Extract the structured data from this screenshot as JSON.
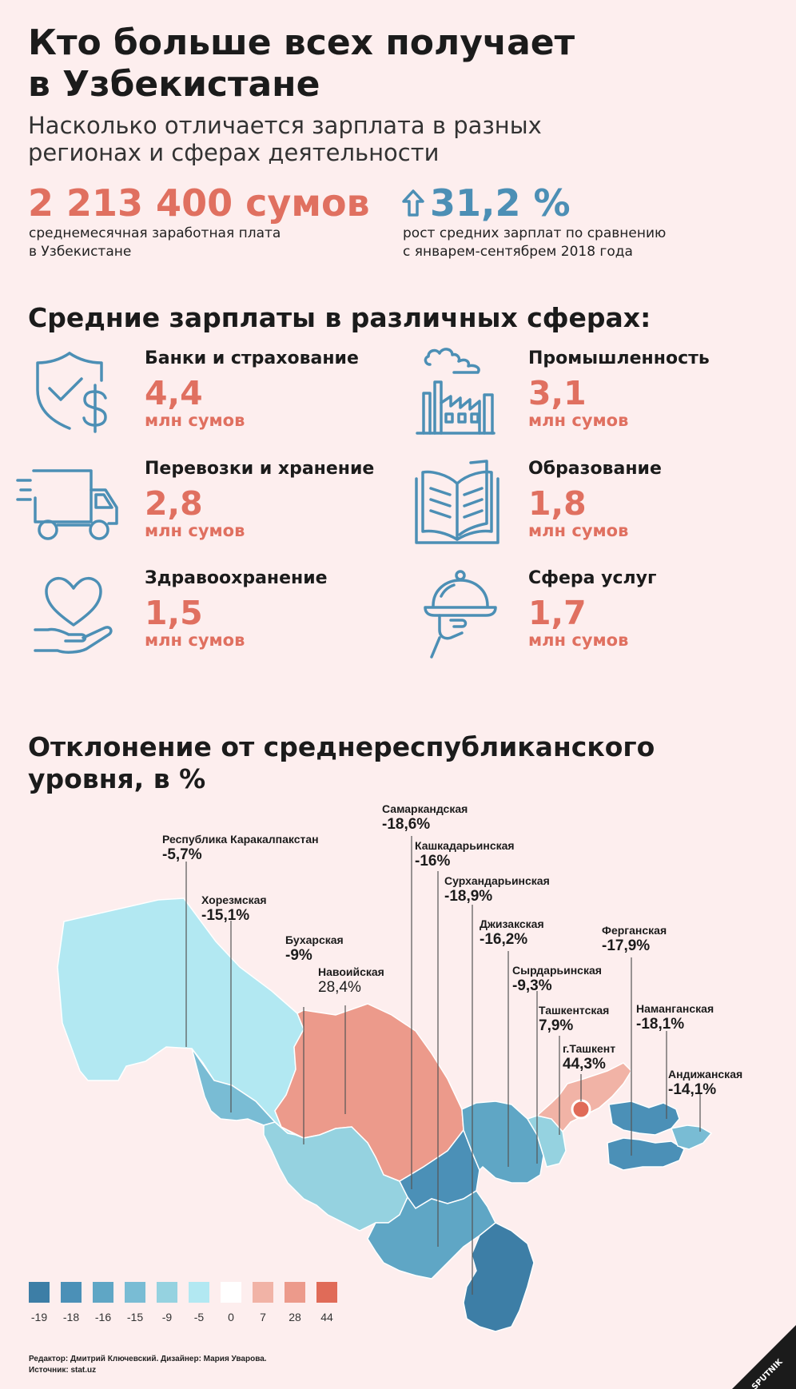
{
  "header": {
    "title_line1": "Кто больше всех получает",
    "title_line2": "в Узбекистане",
    "subtitle_line1": "Насколько отличается зарплата в разных",
    "subtitle_line2": "регионах и сферах деятельности"
  },
  "stats": {
    "average_salary": "2 213 400 сумов",
    "average_caption_line1": "среднемесячная заработная плата",
    "average_caption_line2": "в Узбекистане",
    "growth": "31,2 %",
    "growth_caption_line1": "рост средних зарплат по сравнению",
    "growth_caption_line2": "с январем-сентябрем 2018 года",
    "growth_icon": "arrow-up-icon"
  },
  "sectors": {
    "title": "Средние зарплаты в различных сферах:",
    "items": [
      {
        "name": "Банки и страхование",
        "value": "4,4",
        "unit": "млн сумов",
        "icon": "shield-dollar-icon"
      },
      {
        "name": "Промышленность",
        "value": "3,1",
        "unit": "млн сумов",
        "icon": "factory-icon"
      },
      {
        "name": "Перевозки и хранение",
        "value": "2,8",
        "unit": "млн сумов",
        "icon": "truck-icon"
      },
      {
        "name": "Образование",
        "value": "1,8",
        "unit": "млн сумов",
        "icon": "book-icon"
      },
      {
        "name": "Здравоохранение",
        "value": "1,5",
        "unit": "млн сумов",
        "icon": "heart-hand-icon"
      },
      {
        "name": "Сфера услуг",
        "value": "1,7",
        "unit": "млн сумов",
        "icon": "cloche-icon"
      }
    ]
  },
  "map": {
    "title_line1": "Отклонение от среднереспубликанского",
    "title_line2": "уровня, в %",
    "regions": [
      {
        "name": "Республика Каракалпакстан",
        "value": "-5,7%"
      },
      {
        "name": "Хорезмская",
        "value": "-15,1%"
      },
      {
        "name": "Бухарская",
        "value": "-9%"
      },
      {
        "name": "Навоийская",
        "value": "28,4%"
      },
      {
        "name": "Самаркандская",
        "value": "-18,6%"
      },
      {
        "name": "Кашкадарьинская",
        "value": "-16%"
      },
      {
        "name": "Сурхандарьинская",
        "value": "-18,9%"
      },
      {
        "name": "Джизакская",
        "value": "-16,2%"
      },
      {
        "name": "Сырдарьинская",
        "value": "-9,3%"
      },
      {
        "name": "Ташкентская",
        "value": "7,9%"
      },
      {
        "name": "г.Ташкент",
        "value": "44,3%"
      },
      {
        "name": "Ферганская",
        "value": "-17,9%"
      },
      {
        "name": "Наманганская",
        "value": "-18,1%"
      },
      {
        "name": "Андижанская",
        "value": "-14,1%"
      }
    ],
    "legend": {
      "ticks": [
        "-19",
        "-18",
        "-16",
        "-15",
        "-9",
        "-5",
        "0",
        "7",
        "28",
        "44"
      ],
      "colors": [
        "#3d7ea6",
        "#4b90b7",
        "#5fa6c5",
        "#79bcd4",
        "#95d2e0",
        "#b2e8f2",
        "#ffffff",
        "#f1b3a6",
        "#ec9a8b",
        "#e06b58"
      ]
    }
  },
  "footer": {
    "credits_line1": "Редактор: Дмитрий Ключевский. Дизайнер: Мария Уварова.",
    "credits_line2": "Источник: stat.uz",
    "logo_text": "SPUTNIK"
  }
}
